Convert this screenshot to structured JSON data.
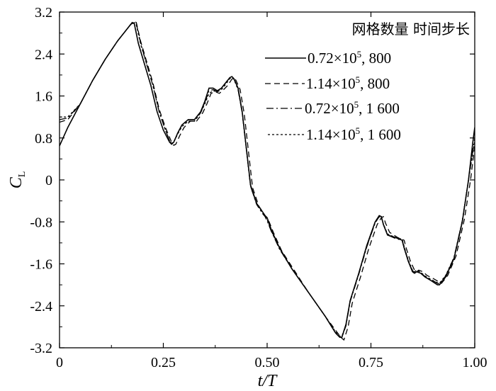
{
  "chart_data": {
    "type": "line",
    "xlabel": "t/T",
    "ylabel": "C_L",
    "ylabel_main": "C",
    "ylabel_sub": "L",
    "xlim": [
      0,
      1.0
    ],
    "ylim": [
      -3.2,
      3.2
    ],
    "x_ticks": [
      "0",
      "0.25",
      "0.50",
      "0.75",
      "1.00"
    ],
    "x_tick_values": [
      0,
      0.25,
      0.5,
      0.75,
      1.0
    ],
    "y_ticks": [
      "3.2",
      "2.4",
      "1.6",
      "0.8",
      "0",
      "-0.8",
      "-1.6",
      "-2.4",
      "-3.2"
    ],
    "y_tick_values": [
      3.2,
      2.4,
      1.6,
      0.8,
      0,
      -0.8,
      -1.6,
      -2.4,
      -3.2
    ],
    "grid": false,
    "legend_title": "网格数量  时间步长",
    "legend_position": "top-right",
    "series": [
      {
        "name": "0.72×10⁵, 800",
        "label_base": "0.72×10",
        "label_exp": "5",
        "label_tail": ", 800",
        "dash": "solid",
        "x": [
          0,
          0.02,
          0.05,
          0.08,
          0.11,
          0.14,
          0.16,
          0.17,
          0.175,
          0.18,
          0.19,
          0.205,
          0.22,
          0.235,
          0.25,
          0.265,
          0.27,
          0.275,
          0.285,
          0.295,
          0.31,
          0.325,
          0.34,
          0.35,
          0.36,
          0.37,
          0.38,
          0.39,
          0.4,
          0.41,
          0.415,
          0.42,
          0.43,
          0.44,
          0.45,
          0.46,
          0.475,
          0.49,
          0.495,
          0.5,
          0.51,
          0.53,
          0.56,
          0.6,
          0.64,
          0.665,
          0.675,
          0.68,
          0.69,
          0.7,
          0.72,
          0.74,
          0.76,
          0.77,
          0.775,
          0.78,
          0.79,
          0.81,
          0.825,
          0.83,
          0.84,
          0.85,
          0.855,
          0.86,
          0.87,
          0.88,
          0.895,
          0.91,
          0.915,
          0.92,
          0.93,
          0.95,
          0.97,
          0.985,
          0.995,
          1.0
        ],
        "y": [
          0.65,
          1.0,
          1.45,
          1.9,
          2.3,
          2.65,
          2.85,
          2.95,
          3.0,
          2.98,
          2.6,
          2.2,
          1.8,
          1.3,
          0.95,
          0.72,
          0.68,
          0.72,
          0.9,
          1.05,
          1.15,
          1.15,
          1.3,
          1.5,
          1.75,
          1.75,
          1.7,
          1.75,
          1.85,
          1.95,
          1.97,
          1.93,
          1.75,
          1.3,
          0.6,
          -0.1,
          -0.45,
          -0.62,
          -0.68,
          -0.72,
          -0.95,
          -1.3,
          -1.7,
          -2.15,
          -2.6,
          -2.92,
          -3.0,
          -3.0,
          -2.75,
          -2.3,
          -1.8,
          -1.25,
          -0.8,
          -0.68,
          -0.7,
          -0.85,
          -1.05,
          -1.1,
          -1.15,
          -1.3,
          -1.55,
          -1.75,
          -1.78,
          -1.75,
          -1.78,
          -1.85,
          -1.92,
          -2.0,
          -2.0,
          -1.95,
          -1.85,
          -1.5,
          -0.8,
          0.0,
          0.7,
          1.0
        ]
      },
      {
        "name": "1.14×10⁵, 800",
        "label_base": "1.14×10",
        "label_exp": "5",
        "label_tail": ", 800",
        "dash": "8,5",
        "x": [
          0,
          0.02,
          0.05,
          0.08,
          0.11,
          0.14,
          0.16,
          0.17,
          0.18,
          0.185,
          0.195,
          0.21,
          0.225,
          0.24,
          0.255,
          0.27,
          0.275,
          0.28,
          0.29,
          0.3,
          0.315,
          0.33,
          0.345,
          0.355,
          0.365,
          0.375,
          0.385,
          0.395,
          0.405,
          0.415,
          0.42,
          0.425,
          0.435,
          0.445,
          0.455,
          0.465,
          0.48,
          0.495,
          0.5,
          0.505,
          0.515,
          0.535,
          0.565,
          0.6,
          0.64,
          0.67,
          0.68,
          0.685,
          0.695,
          0.705,
          0.725,
          0.745,
          0.765,
          0.775,
          0.78,
          0.785,
          0.795,
          0.815,
          0.83,
          0.835,
          0.845,
          0.855,
          0.86,
          0.865,
          0.875,
          0.885,
          0.9,
          0.915,
          0.92,
          0.925,
          0.935,
          0.955,
          0.975,
          0.99,
          1.0
        ],
        "y": [
          1.1,
          1.15,
          1.45,
          1.9,
          2.3,
          2.65,
          2.85,
          2.95,
          3.02,
          3.0,
          2.65,
          2.25,
          1.85,
          1.35,
          1.0,
          0.72,
          0.66,
          0.68,
          0.85,
          1.0,
          1.12,
          1.12,
          1.28,
          1.45,
          1.65,
          1.68,
          1.65,
          1.72,
          1.8,
          1.92,
          1.95,
          1.9,
          1.72,
          1.25,
          0.55,
          -0.15,
          -0.5,
          -0.68,
          -0.75,
          -0.8,
          -1.0,
          -1.35,
          -1.72,
          -2.15,
          -2.6,
          -2.92,
          -3.02,
          -3.05,
          -2.8,
          -2.35,
          -1.85,
          -1.3,
          -0.85,
          -0.72,
          -0.7,
          -0.82,
          -1.0,
          -1.1,
          -1.15,
          -1.3,
          -1.55,
          -1.72,
          -1.75,
          -1.72,
          -1.75,
          -1.82,
          -1.88,
          -1.95,
          -1.97,
          -1.92,
          -1.82,
          -1.45,
          -0.75,
          0.0,
          0.65
        ]
      },
      {
        "name": "0.72×10⁵, 1 600",
        "label_base": "0.72×10",
        "label_exp": "5",
        "label_tail": ", 1 600",
        "dash": "10,4,2,4",
        "x": [
          0,
          0.02,
          0.05,
          0.08,
          0.11,
          0.14,
          0.16,
          0.17,
          0.18,
          0.185,
          0.195,
          0.21,
          0.225,
          0.24,
          0.255,
          0.265,
          0.27,
          0.275,
          0.285,
          0.295,
          0.31,
          0.325,
          0.34,
          0.35,
          0.36,
          0.37,
          0.38,
          0.39,
          0.4,
          0.41,
          0.415,
          0.42,
          0.43,
          0.44,
          0.45,
          0.46,
          0.475,
          0.49,
          0.495,
          0.5,
          0.51,
          0.53,
          0.56,
          0.6,
          0.64,
          0.665,
          0.675,
          0.68,
          0.69,
          0.7,
          0.72,
          0.74,
          0.76,
          0.77,
          0.775,
          0.78,
          0.79,
          0.81,
          0.825,
          0.83,
          0.84,
          0.85,
          0.855,
          0.86,
          0.87,
          0.88,
          0.895,
          0.91,
          0.915,
          0.92,
          0.93,
          0.95,
          0.97,
          0.985,
          1.0
        ],
        "y": [
          1.15,
          1.18,
          1.45,
          1.9,
          2.3,
          2.65,
          2.85,
          2.95,
          3.0,
          2.98,
          2.62,
          2.2,
          1.8,
          1.3,
          0.95,
          0.75,
          0.68,
          0.72,
          0.9,
          1.05,
          1.12,
          1.12,
          1.28,
          1.48,
          1.7,
          1.72,
          1.68,
          1.75,
          1.85,
          1.95,
          1.97,
          1.93,
          1.72,
          1.28,
          0.58,
          -0.12,
          -0.47,
          -0.65,
          -0.7,
          -0.78,
          -0.98,
          -1.32,
          -1.7,
          -2.15,
          -2.6,
          -2.92,
          -3.0,
          -3.0,
          -2.78,
          -2.32,
          -1.82,
          -1.28,
          -0.82,
          -0.7,
          -0.72,
          -0.85,
          -1.05,
          -1.12,
          -1.15,
          -1.28,
          -1.55,
          -1.73,
          -1.76,
          -1.73,
          -1.77,
          -1.84,
          -1.9,
          -1.97,
          -1.98,
          -1.93,
          -1.83,
          -1.48,
          -0.78,
          0.0,
          0.8
        ]
      },
      {
        "name": "1.14×10⁵, 1 600",
        "label_base": "1.14×10",
        "label_exp": "5",
        "label_tail": ", 1 600",
        "dash": "3,3",
        "x": [
          0,
          0.02,
          0.05,
          0.08,
          0.11,
          0.14,
          0.16,
          0.17,
          0.18,
          0.185,
          0.195,
          0.21,
          0.225,
          0.24,
          0.255,
          0.265,
          0.27,
          0.275,
          0.285,
          0.295,
          0.31,
          0.325,
          0.34,
          0.35,
          0.36,
          0.37,
          0.38,
          0.39,
          0.4,
          0.41,
          0.415,
          0.42,
          0.43,
          0.44,
          0.45,
          0.46,
          0.475,
          0.49,
          0.495,
          0.5,
          0.51,
          0.53,
          0.56,
          0.6,
          0.64,
          0.665,
          0.675,
          0.68,
          0.69,
          0.7,
          0.72,
          0.74,
          0.76,
          0.77,
          0.775,
          0.78,
          0.79,
          0.81,
          0.825,
          0.83,
          0.84,
          0.85,
          0.855,
          0.86,
          0.87,
          0.88,
          0.895,
          0.91,
          0.915,
          0.92,
          0.93,
          0.95,
          0.97,
          0.985,
          1.0
        ],
        "y": [
          1.2,
          1.2,
          1.45,
          1.9,
          2.3,
          2.65,
          2.85,
          2.95,
          3.0,
          2.95,
          2.6,
          2.2,
          1.8,
          1.3,
          0.95,
          0.75,
          0.7,
          0.72,
          0.88,
          1.02,
          1.12,
          1.12,
          1.28,
          1.45,
          1.65,
          1.7,
          1.68,
          1.72,
          1.82,
          1.93,
          1.95,
          1.92,
          1.72,
          1.28,
          0.58,
          -0.12,
          -0.47,
          -0.65,
          -0.7,
          -0.76,
          -0.97,
          -1.32,
          -1.7,
          -2.15,
          -2.6,
          -2.9,
          -2.98,
          -2.98,
          -2.76,
          -2.3,
          -1.8,
          -1.27,
          -0.82,
          -0.7,
          -0.72,
          -0.84,
          -1.03,
          -1.1,
          -1.13,
          -1.27,
          -1.53,
          -1.72,
          -1.75,
          -1.72,
          -1.76,
          -1.83,
          -1.9,
          -1.96,
          -1.97,
          -1.92,
          -1.82,
          -1.48,
          -0.78,
          0.0,
          0.75
        ]
      }
    ]
  }
}
